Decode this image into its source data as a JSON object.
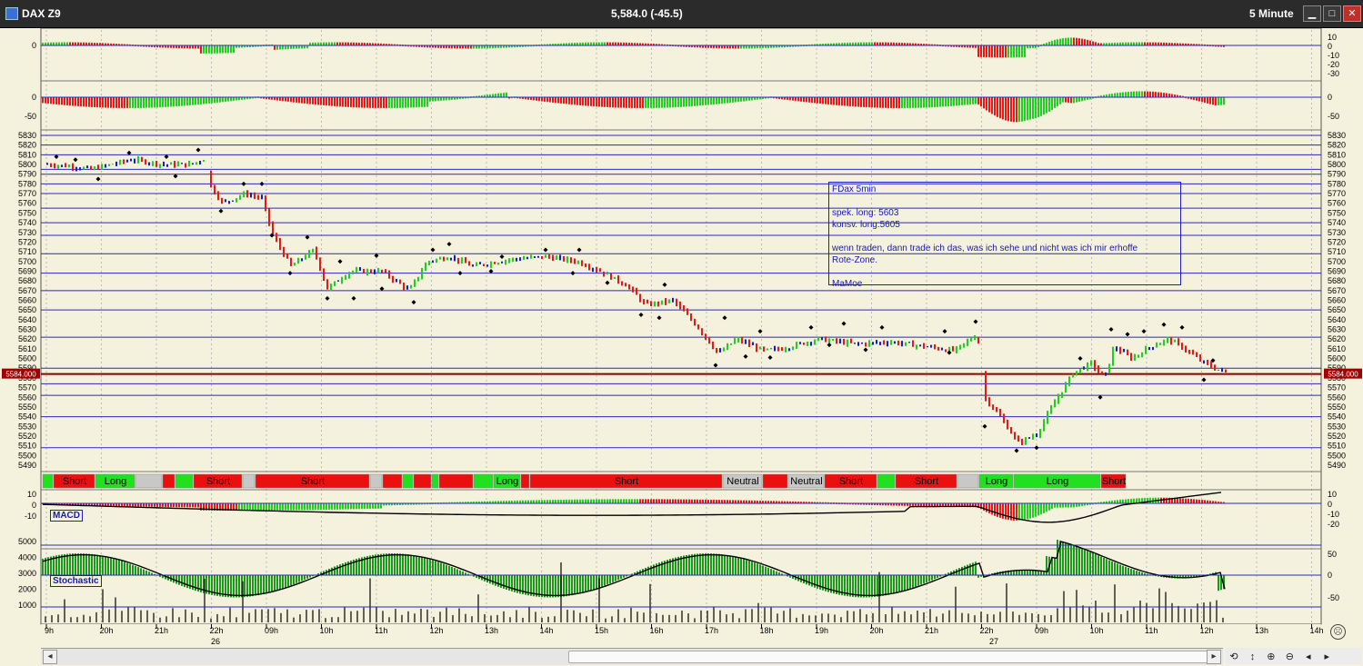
{
  "window": {
    "symbol": "DAX Z9",
    "price_text": "5,584.0 (-45.5)",
    "interval": "5 Minute",
    "min_glyph": "▁",
    "max_glyph": "□",
    "close_glyph": "✕"
  },
  "note": {
    "lines": [
      "FDax 5min",
      "",
      "spek. long: 5603",
      "konsv. long:5605",
      "",
      "wenn traden, dann trade ich das, was ich sehe und nicht was ich mir erhoffe",
      "Rote-Zone.",
      "",
      "MaMoe"
    ]
  },
  "indicators": {
    "macd_label": "MACD",
    "stochastic_label": "Stochastic"
  },
  "price_panel": {
    "current_price_tag": "5584.000",
    "ticks": [
      5830,
      5820,
      5810,
      5800,
      5790,
      5780,
      5770,
      5760,
      5750,
      5740,
      5730,
      5720,
      5710,
      5700,
      5690,
      5680,
      5670,
      5660,
      5650,
      5640,
      5630,
      5620,
      5610,
      5600,
      5590,
      5580,
      5570,
      5560,
      5550,
      5540,
      5530,
      5520,
      5510,
      5500,
      5490
    ],
    "hlines": [
      5830,
      5820,
      5810,
      5795,
      5790,
      5780,
      5770,
      5755,
      5740,
      5727,
      5708,
      5688,
      5670,
      5650,
      5622,
      5590,
      5574,
      5562,
      5540,
      5508
    ]
  },
  "osc_top": {
    "left_tick": "0",
    "right_ticks": [
      "10",
      "0",
      "-10",
      "-20",
      "-30"
    ]
  },
  "osc_second": {
    "left_ticks": [
      "0",
      "-50"
    ],
    "right_ticks": [
      "0",
      "-50"
    ]
  },
  "macd_panel": {
    "left_ticks": [
      "10",
      "0",
      "-10"
    ],
    "right_ticks": [
      "10",
      "0",
      "-10",
      "-20"
    ]
  },
  "volume_panel": {
    "left_ticks": [
      "5000",
      "4000",
      "3000",
      "2000",
      "1000"
    ],
    "right_ticks": [
      "50",
      "0",
      "-50"
    ]
  },
  "signals": [
    {
      "label": "",
      "color": "#20e020"
    },
    {
      "label": "Short",
      "color": "#ea1010"
    },
    {
      "label": "Long",
      "color": "#20e020"
    },
    {
      "label": "",
      "color": "#c8c8c8"
    },
    {
      "label": "",
      "color": "#ea1010"
    },
    {
      "label": "",
      "color": "#20e020"
    },
    {
      "label": "Short",
      "color": "#ea1010"
    },
    {
      "label": "",
      "color": "#c8c8c8"
    },
    {
      "label": "Short",
      "color": "#ea1010"
    },
    {
      "label": "",
      "color": "#c8c8c8"
    },
    {
      "label": "",
      "color": "#ea1010"
    },
    {
      "label": "",
      "color": "#20e020"
    },
    {
      "label": "",
      "color": "#ea1010"
    },
    {
      "label": "",
      "color": "#20e020"
    },
    {
      "label": "",
      "color": "#ea1010"
    },
    {
      "label": "",
      "color": "#20e020"
    },
    {
      "label": "Long",
      "color": "#20e020"
    },
    {
      "label": "",
      "color": "#ea1010"
    },
    {
      "label": "Short",
      "color": "#ea1010"
    },
    {
      "label": "Neutral",
      "color": "#c8c8c8"
    },
    {
      "label": "",
      "color": "#ea1010"
    },
    {
      "label": "Neutral",
      "color": "#c8c8c8"
    },
    {
      "label": "Short",
      "color": "#ea1010"
    },
    {
      "label": "",
      "color": "#20e020"
    },
    {
      "label": "Short",
      "color": "#ea1010"
    },
    {
      "label": "",
      "color": "#c8c8c8"
    },
    {
      "label": "Long",
      "color": "#20e020"
    },
    {
      "label": "Long",
      "color": "#20e020"
    },
    {
      "label": "Short",
      "color": "#ea1010"
    }
  ],
  "time_axis": {
    "labels": [
      "9h",
      "20h",
      "21h",
      "22h",
      "09h",
      "10h",
      "11h",
      "12h",
      "13h",
      "14h",
      "15h",
      "16h",
      "17h",
      "18h",
      "19h",
      "20h",
      "21h",
      "22h",
      "09h",
      "10h",
      "11h",
      "12h",
      "13h",
      "14h"
    ],
    "dates": [
      "26",
      "27"
    ]
  },
  "toolbar": {
    "left_arrow": "◂",
    "right_arrow": "▸",
    "icons": [
      "⟲",
      "↕",
      "⊕",
      "⊖",
      "◂",
      "▸"
    ]
  },
  "colors": {
    "up": "#20d020",
    "down": "#e81818",
    "neutral": "#1020d0",
    "grid": "#2828c8",
    "bg": "#f4f2dc"
  }
}
